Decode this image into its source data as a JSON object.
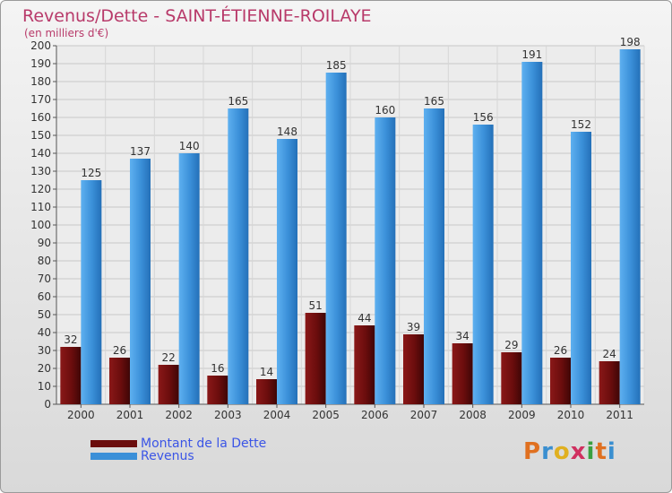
{
  "title": "Revenus/Dette - SAINT-ÉTIENNE-ROILAYE",
  "subtitle": "(en milliers d'€)",
  "logo": {
    "letters": [
      "P",
      "r",
      "o",
      "x",
      "i",
      "t",
      "i"
    ],
    "colors": [
      "#e07020",
      "#3a8fd0",
      "#e0b020",
      "#d03060",
      "#3aa040",
      "#e07020",
      "#3a8fd0"
    ]
  },
  "chart_data": {
    "type": "bar",
    "categories": [
      "2000",
      "2001",
      "2002",
      "2003",
      "2004",
      "2005",
      "2006",
      "2007",
      "2008",
      "2009",
      "2010",
      "2011"
    ],
    "series": [
      {
        "name": "Montant de la Dette",
        "color": "#6b0d0d",
        "values": [
          32,
          26,
          22,
          16,
          14,
          51,
          44,
          39,
          34,
          29,
          26,
          24
        ]
      },
      {
        "name": "Revenus",
        "color": "#3a8fd8",
        "values": [
          125,
          137,
          140,
          165,
          148,
          185,
          160,
          165,
          156,
          191,
          152,
          198
        ]
      }
    ],
    "ylim": [
      0,
      200
    ],
    "yticks": [
      0,
      10,
      20,
      30,
      40,
      50,
      60,
      70,
      80,
      90,
      100,
      110,
      120,
      130,
      140,
      150,
      160,
      170,
      180,
      190,
      200
    ],
    "grid": true,
    "legend_position": "bottom-left"
  }
}
